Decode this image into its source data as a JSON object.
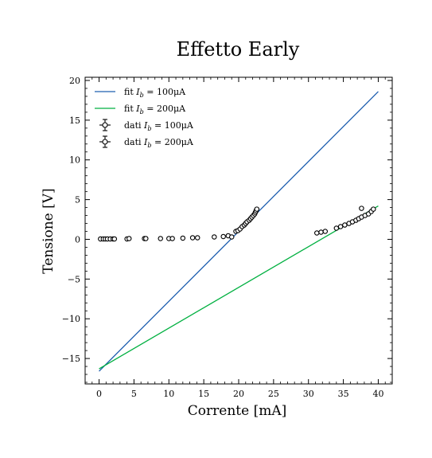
{
  "chart_data": {
    "type": "scatter",
    "title": "Effetto Early",
    "xlabel": "Corrente [mA]",
    "ylabel": "Tensione [V]",
    "xlim": [
      -2,
      42
    ],
    "ylim": [
      -18.2,
      20.4
    ],
    "xticks": [
      0,
      5,
      10,
      15,
      20,
      25,
      30,
      35,
      40
    ],
    "yticks": [
      -15,
      -10,
      -5,
      0,
      5,
      10,
      15,
      20
    ],
    "xtick_labels": [
      "0",
      "5",
      "10",
      "15",
      "20",
      "25",
      "30",
      "35",
      "40"
    ],
    "ytick_labels": [
      "−15",
      "−10",
      "−5",
      "0",
      "5",
      "10",
      "15",
      "20"
    ],
    "grid": false,
    "legend_position": "top-left",
    "legend": [
      {
        "label": "fit I_b = 100μA",
        "text_pre": "fit ",
        "sym": "I",
        "sub": "b",
        "text_post": " = 100μA",
        "kind": "line",
        "color": "#1f5fb0"
      },
      {
        "label": "fit I_b = 200μA",
        "text_pre": "fit ",
        "sym": "I",
        "sub": "b",
        "text_post": " = 200μA",
        "kind": "line",
        "color": "#00b040"
      },
      {
        "label": "dati I_b = 100μA",
        "text_pre": "dati ",
        "sym": "I",
        "sub": "b",
        "text_post": " = 100μA",
        "kind": "errorbar",
        "color": "#000000"
      },
      {
        "label": "dati I_b = 200μA",
        "text_pre": "dati ",
        "sym": "I",
        "sub": "b",
        "text_post": " = 200μA",
        "kind": "errorbar",
        "color": "#000000"
      }
    ],
    "fits": [
      {
        "name": "fit I_b = 100μA",
        "color": "#1f5fb0",
        "x": [
          0,
          40
        ],
        "y": [
          -16.6,
          18.6
        ]
      },
      {
        "name": "fit I_b = 200μA",
        "color": "#00b040",
        "x": [
          0,
          40
        ],
        "y": [
          -16.3,
          4.2
        ]
      }
    ],
    "series": [
      {
        "name": "dati I_b = 100μA",
        "x": [
          0.2,
          0.6,
          0.9,
          1.2,
          1.6,
          2.0,
          2.2,
          4.0,
          4.3,
          6.5,
          6.7,
          8.8,
          10.0,
          10.5,
          12.0,
          13.4,
          14.1,
          16.5,
          17.8,
          18.5,
          19.0,
          19.6,
          19.9,
          20.2,
          20.5,
          20.8,
          21.0,
          21.2,
          21.5,
          21.7,
          21.9,
          22.1,
          22.3,
          22.4,
          22.5,
          22.6
        ],
        "y": [
          0.05,
          0.05,
          0.05,
          0.05,
          0.05,
          0.05,
          0.05,
          0.05,
          0.1,
          0.1,
          0.1,
          0.1,
          0.1,
          0.1,
          0.15,
          0.2,
          0.2,
          0.3,
          0.35,
          0.45,
          0.3,
          1.0,
          1.1,
          1.3,
          1.6,
          1.8,
          2.0,
          2.2,
          2.4,
          2.6,
          2.8,
          3.0,
          3.2,
          3.4,
          3.6,
          3.8
        ]
      },
      {
        "name": "dati I_b = 200μA",
        "x": [
          31.2,
          31.8,
          32.4,
          34.0,
          34.6,
          35.2,
          35.8,
          36.3,
          36.8,
          37.2,
          37.6,
          37.6,
          38.1,
          38.6,
          39.0,
          39.3
        ],
        "y": [
          0.8,
          0.9,
          1.0,
          1.4,
          1.6,
          1.8,
          2.0,
          2.2,
          2.4,
          2.6,
          2.8,
          3.9,
          3.0,
          3.2,
          3.5,
          3.8
        ]
      }
    ]
  }
}
